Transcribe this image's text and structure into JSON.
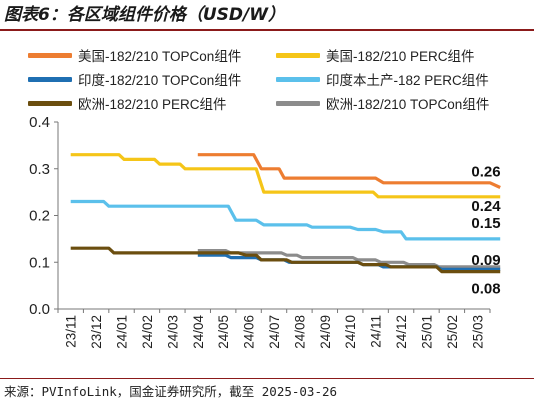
{
  "title": "图表6：各区域组件价格（USD/W）",
  "source": "来源：PVInfoLink，国金证券研究所，截至 2025-03-26",
  "chart_data": {
    "type": "line",
    "title": "图表6：各区域组件价格（USD/W）",
    "xlabel": "",
    "ylabel": "",
    "ylim": [
      0.0,
      0.4
    ],
    "yticks": [
      "0.0",
      "0.1",
      "0.2",
      "0.3",
      "0.4"
    ],
    "grid": false,
    "legend_position": "top",
    "x_labels": [
      "23/11",
      "23/12",
      "24/01",
      "24/02",
      "24/03",
      "24/04",
      "24/05",
      "24/06",
      "24/07",
      "24/08",
      "24/09",
      "24/10",
      "24/11",
      "24/12",
      "25/01",
      "25/02",
      "25/03"
    ],
    "series": [
      {
        "name": "美国-182/210 TOPCon组件",
        "color": "#ed7d31",
        "end_label": "0.26",
        "points": [
          [
            5.0,
            0.33
          ],
          [
            7.2,
            0.33
          ],
          [
            7.5,
            0.3
          ],
          [
            8.2,
            0.3
          ],
          [
            8.4,
            0.28
          ],
          [
            12.0,
            0.28
          ],
          [
            12.3,
            0.27
          ],
          [
            16.5,
            0.27
          ],
          [
            16.9,
            0.26
          ]
        ]
      },
      {
        "name": "美国-182/210 PERC组件",
        "color": "#f5c518",
        "end_label": "0.24",
        "points": [
          [
            0.0,
            0.33
          ],
          [
            1.9,
            0.33
          ],
          [
            2.1,
            0.32
          ],
          [
            3.3,
            0.32
          ],
          [
            3.5,
            0.31
          ],
          [
            4.3,
            0.31
          ],
          [
            4.5,
            0.3
          ],
          [
            7.3,
            0.3
          ],
          [
            7.6,
            0.25
          ],
          [
            11.9,
            0.25
          ],
          [
            12.1,
            0.24
          ],
          [
            16.9,
            0.24
          ]
        ]
      },
      {
        "name": "印度-182/210 TOPCon组件",
        "color": "#1f6fb2",
        "end_label": "",
        "points": [
          [
            5.0,
            0.115
          ],
          [
            6.1,
            0.115
          ],
          [
            6.3,
            0.11
          ],
          [
            7.3,
            0.11
          ],
          [
            7.5,
            0.105
          ],
          [
            8.4,
            0.105
          ],
          [
            8.6,
            0.1
          ],
          [
            11.3,
            0.1
          ],
          [
            11.5,
            0.095
          ],
          [
            12.1,
            0.095
          ],
          [
            12.3,
            0.09
          ],
          [
            14.4,
            0.09
          ],
          [
            14.6,
            0.085
          ],
          [
            16.9,
            0.085
          ]
        ]
      },
      {
        "name": "印度本土产-182 PERC组件",
        "color": "#5bc0eb",
        "end_label": "0.15",
        "points": [
          [
            0.0,
            0.23
          ],
          [
            1.3,
            0.23
          ],
          [
            1.5,
            0.22
          ],
          [
            6.2,
            0.22
          ],
          [
            6.5,
            0.19
          ],
          [
            7.3,
            0.19
          ],
          [
            7.6,
            0.18
          ],
          [
            9.3,
            0.18
          ],
          [
            9.5,
            0.175
          ],
          [
            11.0,
            0.175
          ],
          [
            11.3,
            0.17
          ],
          [
            12.0,
            0.17
          ],
          [
            12.3,
            0.165
          ],
          [
            13.0,
            0.165
          ],
          [
            13.2,
            0.15
          ],
          [
            16.9,
            0.15
          ]
        ]
      },
      {
        "name": "欧洲-182/210 PERC组件",
        "color": "#6b4e0f",
        "end_label": "0.08",
        "points": [
          [
            0.0,
            0.13
          ],
          [
            1.5,
            0.13
          ],
          [
            1.7,
            0.12
          ],
          [
            6.6,
            0.12
          ],
          [
            6.9,
            0.115
          ],
          [
            7.3,
            0.115
          ],
          [
            7.5,
            0.105
          ],
          [
            8.5,
            0.105
          ],
          [
            8.7,
            0.1
          ],
          [
            11.3,
            0.1
          ],
          [
            11.5,
            0.095
          ],
          [
            12.4,
            0.095
          ],
          [
            12.6,
            0.09
          ],
          [
            14.4,
            0.09
          ],
          [
            14.6,
            0.08
          ],
          [
            16.9,
            0.08
          ]
        ]
      },
      {
        "name": "欧洲-182/210 TOPCon组件",
        "color": "#8c8c8c",
        "end_label": "0.09",
        "points": [
          [
            5.0,
            0.125
          ],
          [
            6.1,
            0.125
          ],
          [
            6.3,
            0.12
          ],
          [
            8.3,
            0.12
          ],
          [
            8.5,
            0.115
          ],
          [
            8.9,
            0.115
          ],
          [
            9.1,
            0.11
          ],
          [
            11.1,
            0.11
          ],
          [
            11.3,
            0.105
          ],
          [
            12.0,
            0.105
          ],
          [
            12.2,
            0.1
          ],
          [
            13.1,
            0.1
          ],
          [
            13.3,
            0.095
          ],
          [
            14.3,
            0.095
          ],
          [
            14.5,
            0.09
          ],
          [
            16.9,
            0.09
          ]
        ]
      }
    ]
  }
}
